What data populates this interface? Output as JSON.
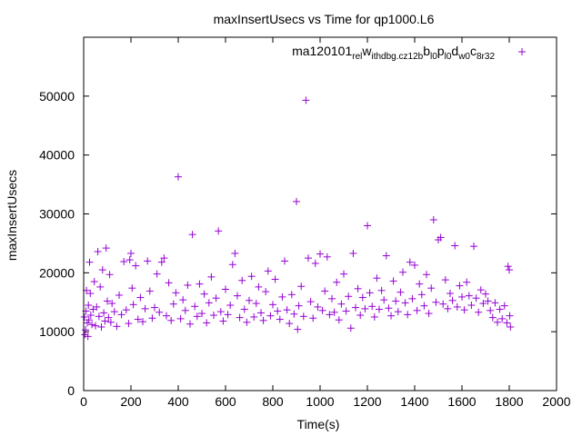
{
  "chart_data": {
    "type": "scatter",
    "title": "maxInsertUsecs vs Time for qp1000.L6",
    "xlabel": "Time(s)",
    "ylabel": "maxInsertUsecs",
    "xlim": [
      0,
      2000
    ],
    "ylim": [
      0,
      60000
    ],
    "x_ticks": [
      "0",
      "200",
      "400",
      "600",
      "800",
      "1000",
      "1200",
      "1400",
      "1600",
      "1800",
      "2000"
    ],
    "y_ticks": [
      "0",
      "10000",
      "20000",
      "30000",
      "40000",
      "50000"
    ],
    "grid": false,
    "legend_position": "top-right",
    "marker": "+",
    "color": "#9400d3",
    "series": [
      {
        "name": "ma120101_rel_withdbg.cz12b_bl0_pl0_dw0_c8r32",
        "name_parts": [
          {
            "t": "ma120101",
            "sub": false
          },
          {
            "t": "rel",
            "sub": true
          },
          {
            "t": "w",
            "sub": false
          },
          {
            "t": "ithdbg.cz12b",
            "sub": true
          },
          {
            "t": "b",
            "sub": false
          },
          {
            "t": "l0",
            "sub": true
          },
          {
            "t": "p",
            "sub": false
          },
          {
            "t": "l0",
            "sub": true
          },
          {
            "t": "d",
            "sub": false
          },
          {
            "t": "w0",
            "sub": true
          },
          {
            "t": "c",
            "sub": false
          },
          {
            "t": "8r32",
            "sub": true
          }
        ],
        "points": [
          [
            3,
            12500
          ],
          [
            5,
            9500
          ],
          [
            8,
            10300
          ],
          [
            10,
            13500
          ],
          [
            12,
            17000
          ],
          [
            15,
            11500
          ],
          [
            18,
            9200
          ],
          [
            20,
            14500
          ],
          [
            22,
            12000
          ],
          [
            25,
            21800
          ],
          [
            28,
            16500
          ],
          [
            30,
            12800
          ],
          [
            35,
            11200
          ],
          [
            40,
            13800
          ],
          [
            45,
            18500
          ],
          [
            50,
            11000
          ],
          [
            55,
            14200
          ],
          [
            60,
            23600
          ],
          [
            65,
            12600
          ],
          [
            70,
            17600
          ],
          [
            75,
            10800
          ],
          [
            80,
            20500
          ],
          [
            85,
            13200
          ],
          [
            90,
            11800
          ],
          [
            95,
            24200
          ],
          [
            100,
            15200
          ],
          [
            105,
            12400
          ],
          [
            110,
            19700
          ],
          [
            115,
            11600
          ],
          [
            120,
            14800
          ],
          [
            130,
            13400
          ],
          [
            140,
            10900
          ],
          [
            150,
            16200
          ],
          [
            160,
            12900
          ],
          [
            170,
            21900
          ],
          [
            180,
            13700
          ],
          [
            190,
            11400
          ],
          [
            195,
            22200
          ],
          [
            200,
            23300
          ],
          [
            205,
            17400
          ],
          [
            210,
            14600
          ],
          [
            220,
            21200
          ],
          [
            230,
            12100
          ],
          [
            240,
            15800
          ],
          [
            250,
            11700
          ],
          [
            260,
            13900
          ],
          [
            270,
            22000
          ],
          [
            280,
            16900
          ],
          [
            290,
            12300
          ],
          [
            300,
            14100
          ],
          [
            310,
            19800
          ],
          [
            320,
            13300
          ],
          [
            330,
            21800
          ],
          [
            340,
            22500
          ],
          [
            350,
            12700
          ],
          [
            360,
            18300
          ],
          [
            370,
            11900
          ],
          [
            380,
            14700
          ],
          [
            390,
            16600
          ],
          [
            400,
            36300
          ],
          [
            410,
            12200
          ],
          [
            420,
            15400
          ],
          [
            430,
            13600
          ],
          [
            440,
            17900
          ],
          [
            450,
            11300
          ],
          [
            460,
            26500
          ],
          [
            470,
            14300
          ],
          [
            480,
            12600
          ],
          [
            490,
            18100
          ],
          [
            500,
            13100
          ],
          [
            510,
            16400
          ],
          [
            520,
            11500
          ],
          [
            530,
            14900
          ],
          [
            540,
            19300
          ],
          [
            550,
            12800
          ],
          [
            560,
            15700
          ],
          [
            570,
            27100
          ],
          [
            580,
            13400
          ],
          [
            590,
            11800
          ],
          [
            600,
            17200
          ],
          [
            610,
            12900
          ],
          [
            620,
            14500
          ],
          [
            630,
            21400
          ],
          [
            640,
            23300
          ],
          [
            650,
            16100
          ],
          [
            660,
            12400
          ],
          [
            670,
            18700
          ],
          [
            680,
            13800
          ],
          [
            690,
            11600
          ],
          [
            700,
            15300
          ],
          [
            710,
            19400
          ],
          [
            720,
            12500
          ],
          [
            730,
            14800
          ],
          [
            740,
            17600
          ],
          [
            750,
            13200
          ],
          [
            760,
            11900
          ],
          [
            770,
            16800
          ],
          [
            780,
            20300
          ],
          [
            790,
            12700
          ],
          [
            800,
            14600
          ],
          [
            810,
            18900
          ],
          [
            820,
            13500
          ],
          [
            830,
            12100
          ],
          [
            840,
            15900
          ],
          [
            850,
            22000
          ],
          [
            860,
            13700
          ],
          [
            870,
            11400
          ],
          [
            880,
            16300
          ],
          [
            890,
            13000
          ],
          [
            900,
            32100
          ],
          [
            905,
            10400
          ],
          [
            910,
            14400
          ],
          [
            920,
            17700
          ],
          [
            930,
            12600
          ],
          [
            940,
            49300
          ],
          [
            950,
            22500
          ],
          [
            960,
            15100
          ],
          [
            970,
            12300
          ],
          [
            980,
            21600
          ],
          [
            990,
            14200
          ],
          [
            1000,
            23200
          ],
          [
            1010,
            13600
          ],
          [
            1020,
            16900
          ],
          [
            1030,
            22700
          ],
          [
            1040,
            12900
          ],
          [
            1050,
            15600
          ],
          [
            1060,
            13300
          ],
          [
            1070,
            18400
          ],
          [
            1080,
            12000
          ],
          [
            1090,
            14700
          ],
          [
            1100,
            19800
          ],
          [
            1110,
            13500
          ],
          [
            1120,
            16000
          ],
          [
            1130,
            10600
          ],
          [
            1140,
            23300
          ],
          [
            1150,
            14100
          ],
          [
            1160,
            17300
          ],
          [
            1170,
            12800
          ],
          [
            1180,
            15800
          ],
          [
            1190,
            13900
          ],
          [
            1200,
            28000
          ],
          [
            1210,
            16600
          ],
          [
            1220,
            14300
          ],
          [
            1230,
            12500
          ],
          [
            1240,
            19100
          ],
          [
            1250,
            13800
          ],
          [
            1260,
            17000
          ],
          [
            1270,
            15400
          ],
          [
            1280,
            22900
          ],
          [
            1290,
            14000
          ],
          [
            1300,
            12700
          ],
          [
            1310,
            18600
          ],
          [
            1320,
            15200
          ],
          [
            1330,
            13400
          ],
          [
            1340,
            16700
          ],
          [
            1350,
            20100
          ],
          [
            1360,
            14900
          ],
          [
            1370,
            12900
          ],
          [
            1380,
            21800
          ],
          [
            1390,
            15600
          ],
          [
            1400,
            21300
          ],
          [
            1410,
            13600
          ],
          [
            1420,
            18100
          ],
          [
            1430,
            16300
          ],
          [
            1440,
            14400
          ],
          [
            1450,
            19700
          ],
          [
            1460,
            13100
          ],
          [
            1470,
            17400
          ],
          [
            1480,
            29000
          ],
          [
            1490,
            15000
          ],
          [
            1500,
            25600
          ],
          [
            1510,
            26000
          ],
          [
            1520,
            14700
          ],
          [
            1530,
            18800
          ],
          [
            1540,
            13900
          ],
          [
            1550,
            16500
          ],
          [
            1560,
            15300
          ],
          [
            1570,
            24600
          ],
          [
            1580,
            14200
          ],
          [
            1590,
            17800
          ],
          [
            1600,
            15900
          ],
          [
            1610,
            13700
          ],
          [
            1620,
            18400
          ],
          [
            1630,
            16100
          ],
          [
            1640,
            14500
          ],
          [
            1650,
            24500
          ],
          [
            1660,
            15700
          ],
          [
            1670,
            13300
          ],
          [
            1680,
            17100
          ],
          [
            1690,
            14800
          ],
          [
            1700,
            16400
          ],
          [
            1710,
            15200
          ],
          [
            1720,
            13600
          ],
          [
            1730,
            12400
          ],
          [
            1740,
            14900
          ],
          [
            1750,
            11600
          ],
          [
            1760,
            13800
          ],
          [
            1770,
            12200
          ],
          [
            1780,
            14400
          ],
          [
            1790,
            11500
          ],
          [
            1795,
            21100
          ],
          [
            1800,
            20500
          ],
          [
            1802,
            12700
          ],
          [
            1805,
            10800
          ]
        ]
      }
    ]
  }
}
